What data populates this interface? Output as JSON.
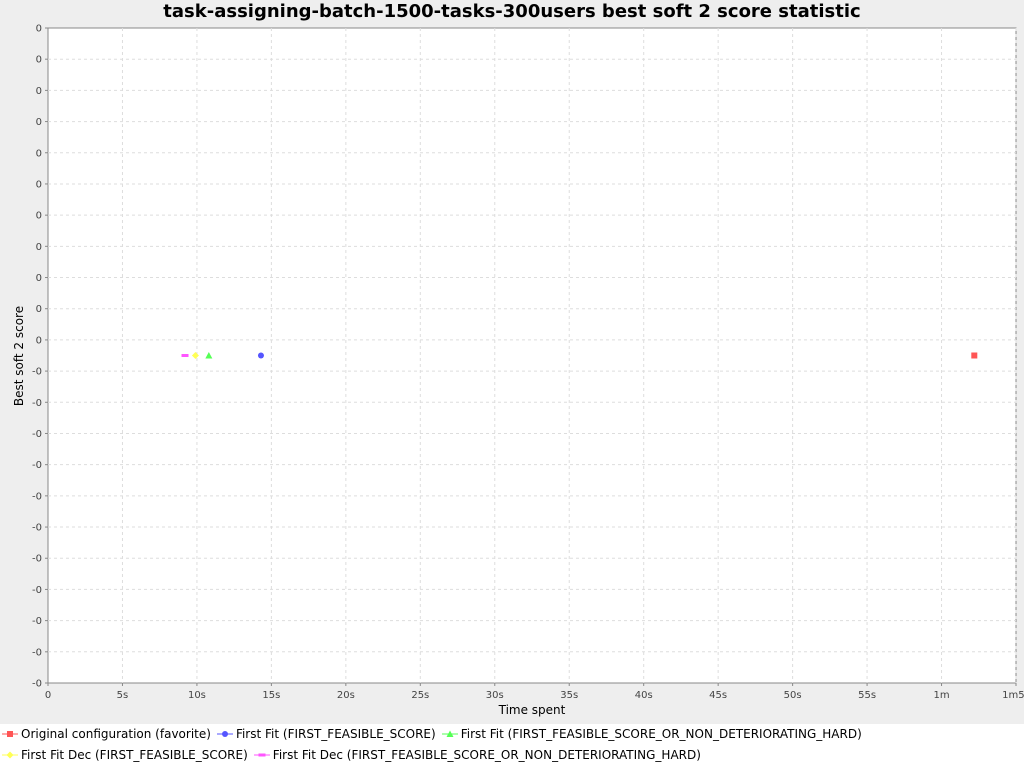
{
  "chart_data": {
    "type": "scatter",
    "title": "task-assigning-batch-1500-tasks-300users best soft 2 score statistic",
    "xlabel": "Time spent",
    "ylabel": "Best soft 2 score",
    "x_unit": "seconds",
    "xlim": [
      0,
      65
    ],
    "x_ticks": [
      {
        "value": 0,
        "label": "0"
      },
      {
        "value": 5,
        "label": "5s"
      },
      {
        "value": 10,
        "label": "10s"
      },
      {
        "value": 15,
        "label": "15s"
      },
      {
        "value": 20,
        "label": "20s"
      },
      {
        "value": 25,
        "label": "25s"
      },
      {
        "value": 30,
        "label": "30s"
      },
      {
        "value": 35,
        "label": "35s"
      },
      {
        "value": 40,
        "label": "40s"
      },
      {
        "value": 45,
        "label": "45s"
      },
      {
        "value": 50,
        "label": "50s"
      },
      {
        "value": 55,
        "label": "55s"
      },
      {
        "value": 60,
        "label": "1m"
      },
      {
        "value": 65,
        "label": "1m5s"
      }
    ],
    "ylim": [
      -1,
      1
    ],
    "y_tick_labels": [
      "0",
      "0",
      "0",
      "0",
      "0",
      "0",
      "0",
      "0",
      "0",
      "0",
      "0",
      "-0",
      "-0",
      "-0",
      "-0",
      "-0",
      "-0",
      "-0",
      "-0",
      "-0",
      "-0",
      "-0"
    ],
    "grid": true,
    "legend_position": "bottom",
    "series": [
      {
        "name": "Original configuration (favorite)",
        "color": "#ff5555",
        "marker": "square",
        "points": [
          {
            "x": 62.2,
            "y": 0
          }
        ]
      },
      {
        "name": "First Fit (FIRST_FEASIBLE_SCORE)",
        "color": "#5555ff",
        "marker": "circle",
        "points": [
          {
            "x": 14.3,
            "y": 0
          }
        ]
      },
      {
        "name": "First Fit (FIRST_FEASIBLE_SCORE_OR_NON_DETERIORATING_HARD)",
        "color": "#55ff55",
        "marker": "triangle",
        "points": [
          {
            "x": 10.8,
            "y": 0
          }
        ]
      },
      {
        "name": "First Fit Dec (FIRST_FEASIBLE_SCORE)",
        "color": "#ffff55",
        "marker": "diamond",
        "points": [
          {
            "x": 9.9,
            "y": 0
          }
        ]
      },
      {
        "name": "First Fit Dec (FIRST_FEASIBLE_SCORE_OR_NON_DETERIORATING_HARD)",
        "color": "#ff55ff",
        "marker": "rect",
        "points": [
          {
            "x": 9.2,
            "y": 0
          }
        ]
      }
    ]
  }
}
